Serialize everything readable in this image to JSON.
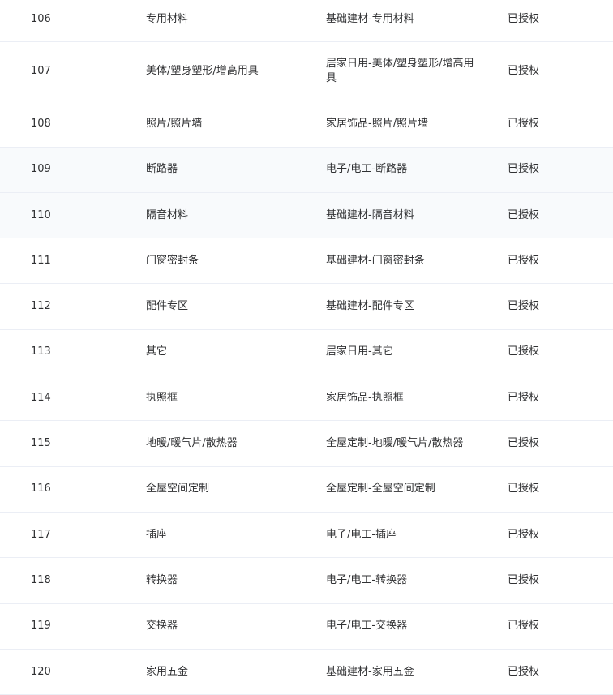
{
  "rows": [
    {
      "id": "106",
      "name": "专用材料",
      "category": "基础建材-专用材料",
      "status": "已授权"
    },
    {
      "id": "107",
      "name": "美体/塑身塑形/增高用具",
      "category": "居家日用-美体/塑身塑形/增高用具",
      "status": "已授权"
    },
    {
      "id": "108",
      "name": "照片/照片墙",
      "category": "家居饰品-照片/照片墙",
      "status": "已授权"
    },
    {
      "id": "109",
      "name": "断路器",
      "category": "电子/电工-断路器",
      "status": "已授权"
    },
    {
      "id": "110",
      "name": "隔音材料",
      "category": "基础建材-隔音材料",
      "status": "已授权"
    },
    {
      "id": "111",
      "name": "门窗密封条",
      "category": "基础建材-门窗密封条",
      "status": "已授权"
    },
    {
      "id": "112",
      "name": "配件专区",
      "category": "基础建材-配件专区",
      "status": "已授权"
    },
    {
      "id": "113",
      "name": "其它",
      "category": "居家日用-其它",
      "status": "已授权"
    },
    {
      "id": "114",
      "name": "执照框",
      "category": "家居饰品-执照框",
      "status": "已授权"
    },
    {
      "id": "115",
      "name": "地暖/暖气片/散热器",
      "category": "全屋定制-地暖/暖气片/散热器",
      "status": "已授权"
    },
    {
      "id": "116",
      "name": "全屋空间定制",
      "category": "全屋定制-全屋空间定制",
      "status": "已授权"
    },
    {
      "id": "117",
      "name": "插座",
      "category": "电子/电工-插座",
      "status": "已授权"
    },
    {
      "id": "118",
      "name": "转换器",
      "category": "电子/电工-转换器",
      "status": "已授权"
    },
    {
      "id": "119",
      "name": "交换器",
      "category": "电子/电工-交换器",
      "status": "已授权"
    },
    {
      "id": "120",
      "name": "家用五金",
      "category": "基础建材-家用五金",
      "status": "已授权"
    }
  ],
  "colors": {
    "row_highlight": "#f8fafc",
    "border": "#ebeef5",
    "text": "#303133"
  }
}
